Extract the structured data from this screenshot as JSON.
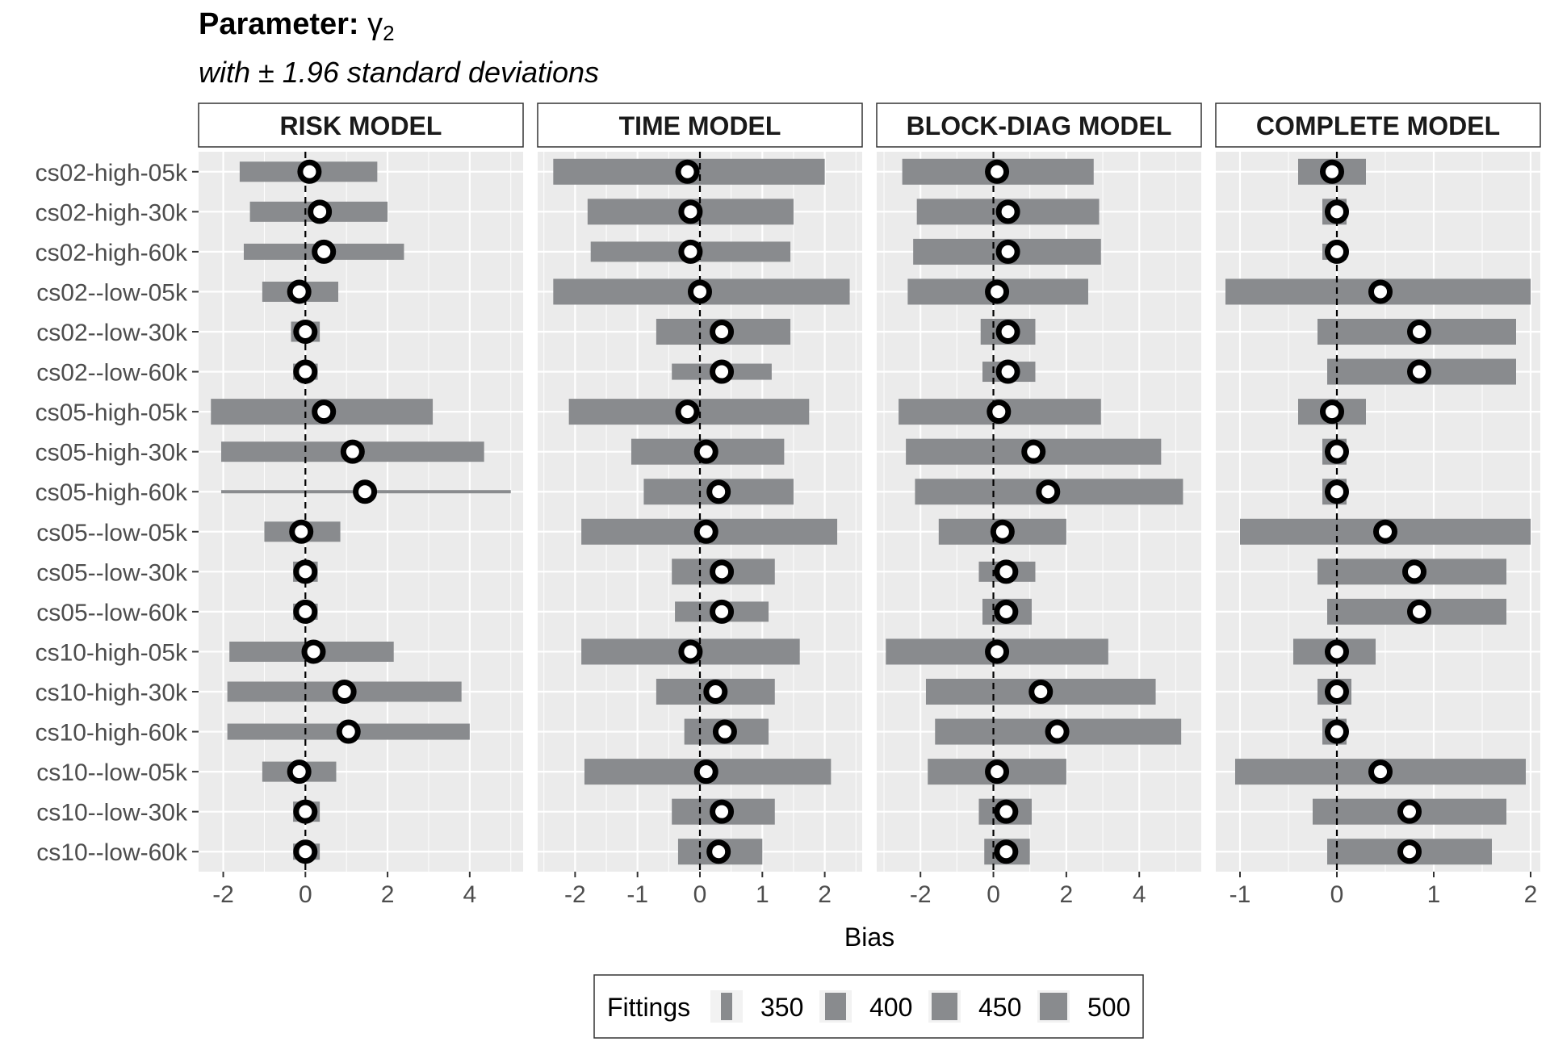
{
  "chart_data": {
    "type": "bar",
    "title_prefix": "Parameter:",
    "title_symbol": "γ",
    "title_subscript": "2",
    "subtitle": "with ± 1.96 standard deviations",
    "xlabel": "Bias",
    "ylabel": "",
    "legend": {
      "title": "Fittings",
      "position": "bottom",
      "entries": [
        {
          "label": "350",
          "fittings": 350
        },
        {
          "label": "400",
          "fittings": 400
        },
        {
          "label": "450",
          "fittings": 450
        },
        {
          "label": "500",
          "fittings": 500
        }
      ]
    },
    "colors": {
      "bar": "#898b8e",
      "panel_bg": "#ebebeb",
      "grid": "#ffffff",
      "strip_bg": "#ffffff",
      "reference_line": "#000000",
      "point_fill": "#ffffff",
      "point_stroke": "#000000"
    },
    "grid": true,
    "reference_line_x": 0,
    "categories": [
      "cs02-high-05k",
      "cs02-high-30k",
      "cs02-high-60k",
      "cs02--low-05k",
      "cs02--low-30k",
      "cs02--low-60k",
      "cs05-high-05k",
      "cs05-high-30k",
      "cs05-high-60k",
      "cs05--low-05k",
      "cs05--low-30k",
      "cs05--low-60k",
      "cs10-high-05k",
      "cs10-high-30k",
      "cs10-high-60k",
      "cs10--low-05k",
      "cs10--low-30k",
      "cs10--low-60k"
    ],
    "panels": [
      {
        "label": "RISK MODEL",
        "xlim": [
          -2.6,
          5.3
        ],
        "xticks": [
          -2,
          0,
          2,
          4
        ],
        "xtick_labels": [
          "-2",
          "0",
          "2",
          "4"
        ],
        "bias": [
          0.1,
          0.35,
          0.45,
          -0.15,
          0.0,
          0.0,
          0.45,
          1.15,
          1.45,
          -0.1,
          0.0,
          0.0,
          0.2,
          0.95,
          1.05,
          -0.15,
          0.0,
          0.0
        ],
        "low": [
          -1.6,
          -1.35,
          -1.5,
          -1.05,
          -0.35,
          -0.3,
          -2.3,
          -2.05,
          -2.05,
          -1.0,
          -0.3,
          -0.3,
          -1.85,
          -1.9,
          -1.9,
          -1.05,
          -0.3,
          -0.3
        ],
        "high": [
          1.75,
          2.0,
          2.4,
          0.8,
          0.35,
          0.3,
          3.1,
          4.35,
          5.0,
          0.85,
          0.3,
          0.3,
          2.15,
          3.8,
          4.0,
          0.75,
          0.35,
          0.35
        ],
        "fittings": [
          450,
          450,
          400,
          450,
          450,
          400,
          500,
          450,
          350,
          450,
          450,
          400,
          450,
          450,
          400,
          450,
          450,
          400
        ]
      },
      {
        "label": "TIME MODEL",
        "xlim": [
          -2.6,
          2.6
        ],
        "xticks": [
          -2,
          -1,
          0,
          1,
          2
        ],
        "xtick_labels": [
          "-2",
          "-1",
          "0",
          "1",
          "2"
        ],
        "bias": [
          -0.2,
          -0.15,
          -0.15,
          0.0,
          0.35,
          0.35,
          -0.2,
          0.1,
          0.3,
          0.1,
          0.35,
          0.35,
          -0.15,
          0.25,
          0.4,
          0.1,
          0.35,
          0.3
        ],
        "low": [
          -2.35,
          -1.8,
          -1.75,
          -2.35,
          -0.7,
          -0.45,
          -2.1,
          -1.1,
          -0.9,
          -1.9,
          -0.45,
          -0.4,
          -1.9,
          -0.7,
          -0.25,
          -1.85,
          -0.45,
          -0.35
        ],
        "high": [
          2.0,
          1.5,
          1.45,
          2.4,
          1.45,
          1.15,
          1.75,
          1.35,
          1.5,
          2.2,
          1.2,
          1.1,
          1.6,
          1.2,
          1.1,
          2.1,
          1.2,
          1.0
        ],
        "fittings": [
          500,
          500,
          450,
          500,
          500,
          400,
          500,
          500,
          500,
          500,
          500,
          450,
          500,
          500,
          500,
          500,
          500,
          500
        ]
      },
      {
        "label": "BLOCK-DIAG MODEL",
        "xlim": [
          -3.2,
          5.7
        ],
        "xticks": [
          -2,
          0,
          2,
          4
        ],
        "xtick_labels": [
          "-2",
          "0",
          "2",
          "4"
        ],
        "bias": [
          0.1,
          0.4,
          0.4,
          0.1,
          0.4,
          0.4,
          0.15,
          1.1,
          1.5,
          0.25,
          0.35,
          0.35,
          0.1,
          1.3,
          1.75,
          0.1,
          0.35,
          0.35
        ],
        "low": [
          -2.5,
          -2.1,
          -2.2,
          -2.35,
          -0.35,
          -0.3,
          -2.6,
          -2.4,
          -2.15,
          -1.5,
          -0.4,
          -0.3,
          -2.95,
          -1.85,
          -1.6,
          -1.8,
          -0.4,
          -0.25
        ],
        "high": [
          2.75,
          2.9,
          2.95,
          2.6,
          1.15,
          1.15,
          2.95,
          4.6,
          5.2,
          2.0,
          1.15,
          1.05,
          3.15,
          4.45,
          5.15,
          2.0,
          1.05,
          1.0
        ],
        "fittings": [
          500,
          500,
          500,
          500,
          500,
          450,
          500,
          500,
          500,
          500,
          450,
          500,
          500,
          500,
          500,
          500,
          500,
          500
        ]
      },
      {
        "label": "COMPLETE MODEL",
        "xlim": [
          -1.25,
          2.1
        ],
        "xticks": [
          -1,
          0,
          1,
          2
        ],
        "xtick_labels": [
          "-1",
          "0",
          "1",
          "2"
        ],
        "bias": [
          -0.05,
          0.0,
          0.0,
          0.45,
          0.85,
          0.85,
          -0.05,
          0.0,
          0.0,
          0.5,
          0.8,
          0.85,
          0.0,
          0.0,
          0.0,
          0.45,
          0.75,
          0.75
        ],
        "low": [
          -0.4,
          -0.15,
          -0.15,
          -1.15,
          -0.2,
          -0.1,
          -0.4,
          -0.15,
          -0.15,
          -1.0,
          -0.2,
          -0.1,
          -0.45,
          -0.2,
          -0.15,
          -1.05,
          -0.25,
          -0.1
        ],
        "high": [
          0.3,
          0.1,
          0.1,
          2.0,
          1.85,
          1.85,
          0.3,
          0.1,
          0.1,
          2.0,
          1.75,
          1.75,
          0.4,
          0.15,
          0.1,
          1.95,
          1.75,
          1.6
        ],
        "fittings": [
          500,
          500,
          400,
          500,
          500,
          500,
          500,
          500,
          500,
          500,
          500,
          500,
          500,
          500,
          500,
          500,
          500,
          500
        ]
      }
    ]
  }
}
